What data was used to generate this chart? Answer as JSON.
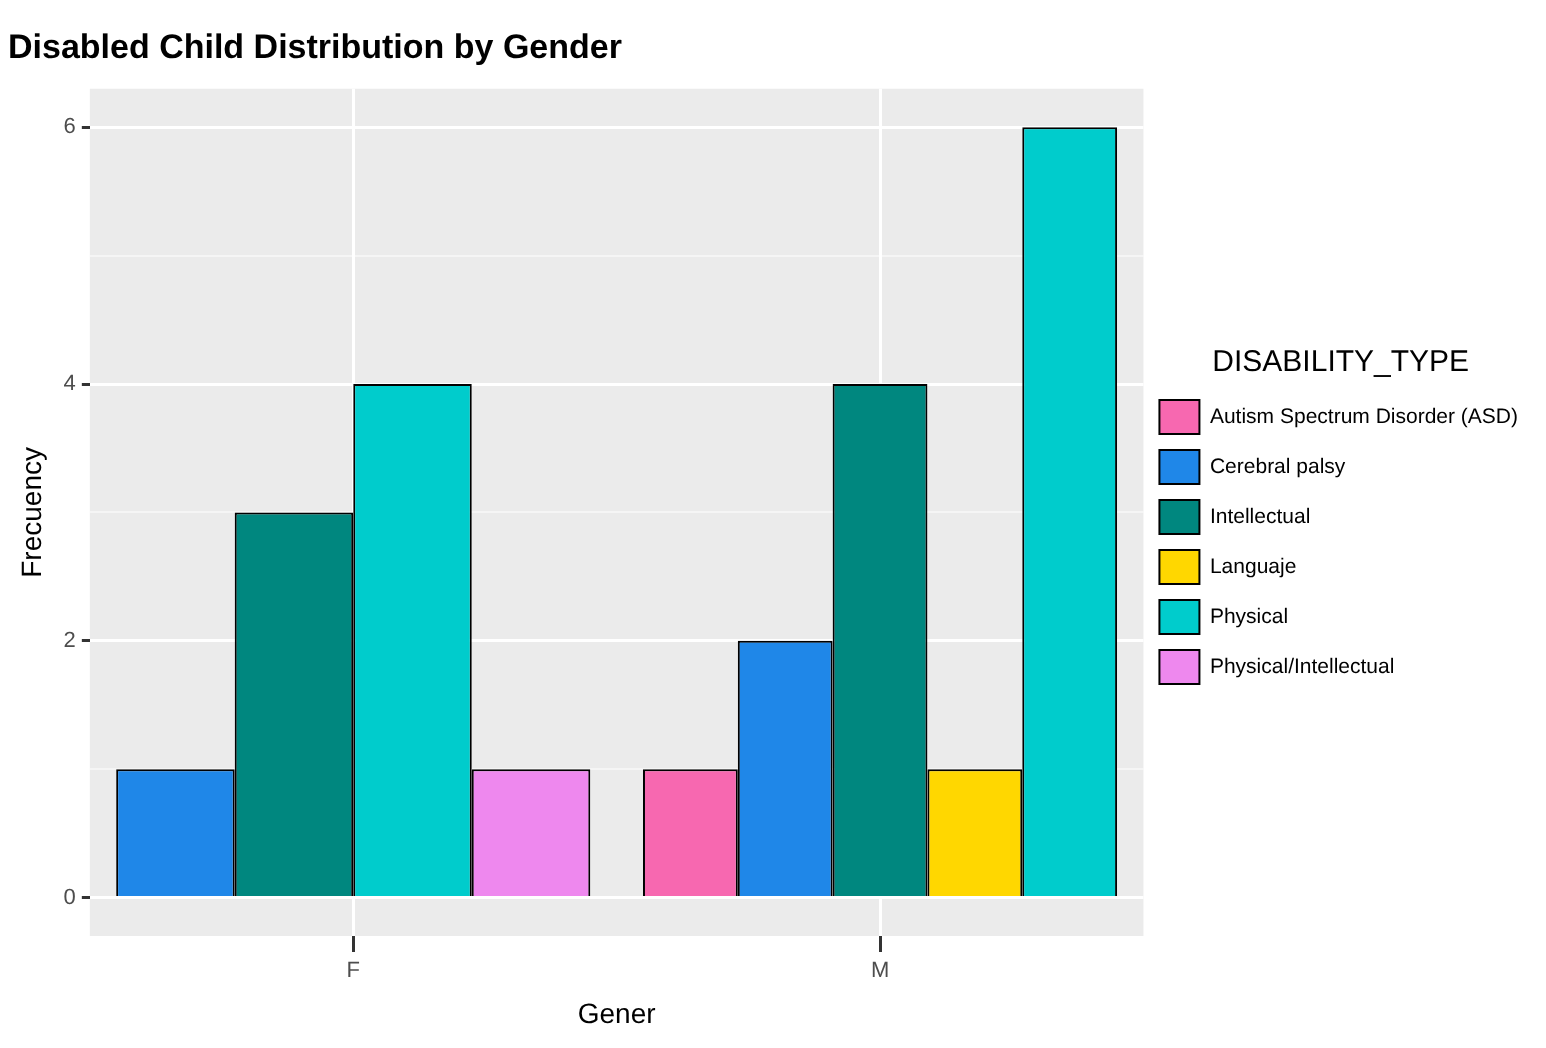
{
  "chart_data": {
    "type": "bar",
    "title": "Disabled Child Distribution by Gender",
    "xlabel": "Gener",
    "ylabel": "Frecuency",
    "legend_title": "DISABILITY_TYPE",
    "categories": [
      "F",
      "M"
    ],
    "series": [
      {
        "name": "Autism Spectrum Disorder (ASD)",
        "color": "#f768b0",
        "values": [
          null,
          1
        ]
      },
      {
        "name": "Cerebral palsy",
        "color": "#1f87e8",
        "values": [
          1,
          2
        ]
      },
      {
        "name": "Intellectual",
        "color": "#00877f",
        "values": [
          3,
          4
        ]
      },
      {
        "name": "Languaje",
        "color": "#ffd700",
        "values": [
          null,
          1
        ]
      },
      {
        "name": "Physical",
        "color": "#00cccc",
        "values": [
          4,
          6
        ]
      },
      {
        "name": "Physical/Intellectual",
        "color": "#ee88ee",
        "values": [
          1,
          null
        ]
      }
    ],
    "ylim": [
      -0.3,
      6.3
    ],
    "yticks": [
      0,
      {
        "value": 1,
        "label": null
      },
      2,
      {
        "value": 3,
        "label": null
      },
      4,
      {
        "value": 5,
        "label": null
      },
      6
    ],
    "grid": true,
    "legend": "right"
  }
}
